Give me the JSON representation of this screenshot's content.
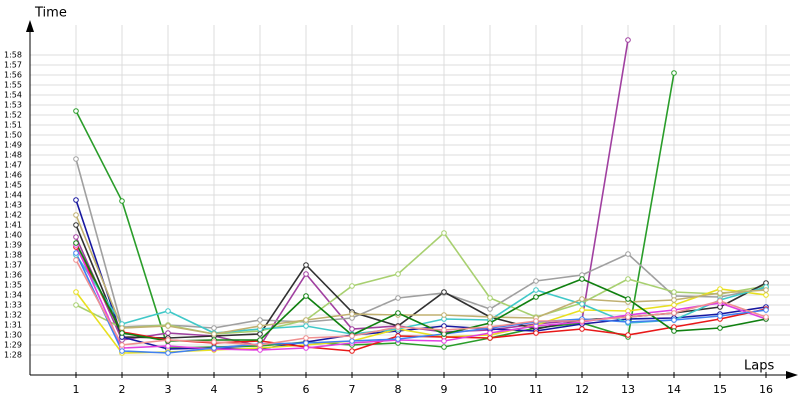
{
  "chart_data": {
    "type": "line",
    "ylabel": "Time",
    "xlabel": "Laps",
    "grid": true,
    "xlim": [
      0,
      16.6
    ],
    "xticks": [
      1,
      2,
      3,
      4,
      5,
      6,
      7,
      8,
      9,
      10,
      11,
      12,
      13,
      14,
      15,
      16
    ],
    "ylim": [
      86,
      120.5
    ],
    "yticks": [
      {
        "value": 88,
        "label": "1:28"
      },
      {
        "value": 89,
        "label": "1:29"
      },
      {
        "value": 90,
        "label": "1:30"
      },
      {
        "value": 91,
        "label": "1:31"
      },
      {
        "value": 92,
        "label": "1:32"
      },
      {
        "value": 93,
        "label": "1:33"
      },
      {
        "value": 94,
        "label": "1:34"
      },
      {
        "value": 95,
        "label": "1:35"
      },
      {
        "value": 96,
        "label": "1:36"
      },
      {
        "value": 97,
        "label": "1:37"
      },
      {
        "value": 98,
        "label": "1:38"
      },
      {
        "value": 99,
        "label": "1:39"
      },
      {
        "value": 100,
        "label": "1:40"
      },
      {
        "value": 101,
        "label": "1:41"
      },
      {
        "value": 102,
        "label": "1:42"
      },
      {
        "value": 103,
        "label": "1:43"
      },
      {
        "value": 104,
        "label": "1:44"
      },
      {
        "value": 105,
        "label": "1:45"
      },
      {
        "value": 106,
        "label": "1:46"
      },
      {
        "value": 107,
        "label": "1:47"
      },
      {
        "value": 108,
        "label": "1:48"
      },
      {
        "value": 109,
        "label": "1:49"
      },
      {
        "value": 110,
        "label": "1:50"
      },
      {
        "value": 111,
        "label": "1:51"
      },
      {
        "value": 112,
        "label": "1:52"
      },
      {
        "value": 113,
        "label": "1:53"
      },
      {
        "value": 114,
        "label": "1:54"
      },
      {
        "value": 115,
        "label": "1:55"
      },
      {
        "value": 116,
        "label": "1:56"
      },
      {
        "value": 117,
        "label": "1:57"
      },
      {
        "value": 118,
        "label": "1:58"
      }
    ],
    "x": [
      1,
      2,
      3,
      4,
      5,
      6,
      7,
      8,
      9,
      10,
      11,
      12,
      13,
      14,
      15,
      16
    ],
    "series": [
      {
        "color": "#2a9d2a",
        "values": [
          112.4,
          103.4,
          88.7,
          88.8,
          88.9,
          89.3,
          89.0,
          89.2,
          88.8,
          89.7,
          90.7,
          91.2,
          89.8,
          116.2,
          null,
          null
        ]
      },
      {
        "color": "#a040a0",
        "values": [
          99.8,
          89.5,
          90.2,
          89.9,
          88.9,
          96.1,
          90.6,
          90.9,
          90.3,
          90.5,
          91.1,
          91.5,
          119.5,
          null,
          null,
          null
        ]
      },
      {
        "color": "#a0a0a0",
        "values": [
          107.6,
          90.8,
          91.0,
          90.7,
          91.5,
          91.3,
          91.7,
          93.7,
          94.2,
          92.6,
          95.4,
          96.0,
          98.1,
          93.9,
          93.8,
          94.7
        ]
      },
      {
        "color": "#a8d070",
        "values": [
          93.0,
          90.7,
          91.0,
          90.1,
          90.4,
          91.5,
          94.9,
          96.1,
          100.2,
          93.7,
          91.8,
          93.2,
          95.6,
          94.3,
          94.1,
          94.9
        ]
      },
      {
        "color": "#303030",
        "values": [
          101.0,
          89.8,
          89.7,
          89.9,
          90.1,
          97.0,
          92.3,
          90.9,
          94.3,
          91.8,
          90.6,
          91.5,
          91.8,
          92.2,
          92.8,
          95.2
        ]
      },
      {
        "color": "#1818a0",
        "values": [
          103.5,
          89.8,
          88.6,
          88.7,
          88.6,
          89.3,
          90.0,
          90.4,
          90.9,
          90.6,
          90.4,
          91.1,
          91.6,
          91.7,
          92.1,
          92.8
        ]
      },
      {
        "color": "#e8e020",
        "values": [
          94.3,
          88.2,
          88.3,
          88.5,
          88.7,
          89.0,
          89.4,
          90.6,
          89.8,
          90.0,
          91.0,
          92.5,
          92.4,
          93.0,
          94.6,
          94.0
        ]
      },
      {
        "color": "#e81818",
        "values": [
          98.8,
          90.3,
          89.5,
          89.2,
          89.4,
          88.8,
          88.4,
          89.9,
          89.8,
          89.7,
          90.2,
          90.6,
          90.0,
          90.8,
          91.6,
          92.6
        ]
      },
      {
        "color": "#40c8c8",
        "values": [
          98.0,
          91.1,
          92.4,
          90.2,
          90.6,
          90.9,
          90.1,
          90.6,
          91.6,
          91.5,
          94.5,
          93.1,
          91.2,
          91.5,
          93.5,
          94.8
        ]
      },
      {
        "color": "#c0b070",
        "values": [
          102.0,
          90.7,
          90.9,
          90.1,
          90.9,
          91.5,
          92.1,
          92.0,
          92.0,
          91.8,
          91.7,
          93.6,
          93.3,
          93.5,
          94.2,
          94.5
        ]
      },
      {
        "color": "#e040e0",
        "values": [
          99.0,
          88.7,
          88.9,
          88.6,
          88.5,
          88.7,
          89.2,
          89.5,
          89.4,
          90.2,
          90.9,
          91.3,
          92.0,
          92.5,
          93.2,
          91.6
        ]
      },
      {
        "color": "#4080f0",
        "values": [
          98.2,
          88.4,
          88.2,
          88.7,
          89.1,
          89.2,
          89.4,
          89.6,
          90.1,
          90.7,
          91.3,
          91.6,
          91.3,
          91.5,
          91.9,
          92.5
        ]
      },
      {
        "color": "#108010",
        "values": [
          99.2,
          90.2,
          89.4,
          89.5,
          89.5,
          93.9,
          90.0,
          92.2,
          90.1,
          91.2,
          93.8,
          95.6,
          93.6,
          90.4,
          90.7,
          91.6
        ]
      },
      {
        "color": "#f09090",
        "values": [
          97.5,
          89.0,
          89.5,
          89.3,
          89.0,
          89.7,
          89.9,
          90.8,
          90.5,
          90.8,
          91.4,
          91.4,
          91.8,
          92.2,
          93.4,
          91.8
        ]
      }
    ]
  }
}
